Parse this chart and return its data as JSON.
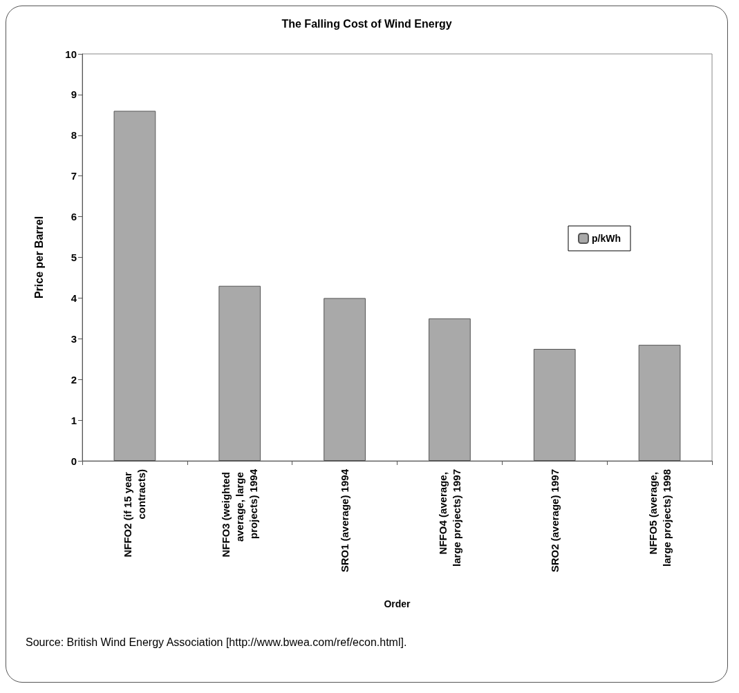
{
  "chart_data": {
    "type": "bar",
    "title": "The Falling Cost of Wind Energy",
    "xlabel": "Order",
    "ylabel": "Price per Barrel",
    "categories": [
      "NFFO2 (if 15 year contracts)",
      "NFFO3 (weighted average, large projects) 1994",
      "SRO1 (average) 1994",
      "NFFO4 (average, large projects) 1997",
      "SRO2 (average) 1997",
      "NFFO5 (average, large projects) 1998"
    ],
    "series": [
      {
        "name": "p/kWh",
        "color": "#a9a9a9",
        "values": [
          8.6,
          4.3,
          4.0,
          3.5,
          2.75,
          2.85
        ]
      }
    ],
    "ylim": [
      0,
      10
    ],
    "yticks": [
      0,
      1,
      2,
      3,
      4,
      5,
      6,
      7,
      8,
      9,
      10
    ],
    "grid": false,
    "legend": "right",
    "annotations": [
      "Source: British Wind Energy Association [http://www.bwea.com/ref/econ.html]."
    ]
  }
}
